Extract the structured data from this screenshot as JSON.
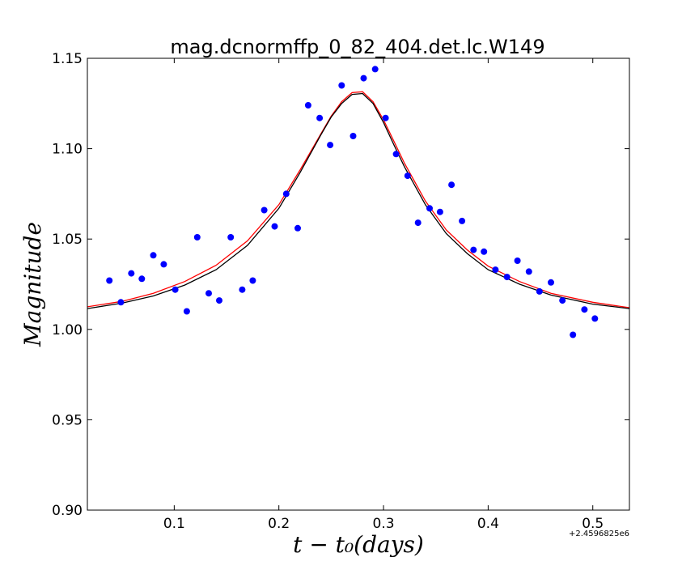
{
  "chart_data": {
    "type": "scatter",
    "title": "mag.dcnormffp_0_82_404.det.lc.W149",
    "xlabel": "t − t₀(days)",
    "ylabel": "Magnitude",
    "x_offset_label": "+2.4596825e6",
    "xlim": [
      0.017,
      0.535
    ],
    "ylim": [
      0.9,
      1.15
    ],
    "xticks": [
      0.1,
      0.2,
      0.3,
      0.4,
      0.5
    ],
    "xtick_labels": [
      "0.1",
      "0.2",
      "0.3",
      "0.4",
      "0.5"
    ],
    "yticks": [
      0.9,
      0.95,
      1.0,
      1.05,
      1.1,
      1.15
    ],
    "ytick_labels": [
      "0.90",
      "0.95",
      "1.00",
      "1.05",
      "1.10",
      "1.15"
    ],
    "grid": false,
    "colors": {
      "points": "#0000ff",
      "model_red": "#ff0000",
      "model_black": "#000000"
    },
    "series": [
      {
        "kind": "points",
        "color": "#0000ff",
        "x": [
          0.038,
          0.049,
          0.059,
          0.069,
          0.08,
          0.09,
          0.101,
          0.112,
          0.122,
          0.133,
          0.143,
          0.154,
          0.165,
          0.175,
          0.186,
          0.196,
          0.207,
          0.218,
          0.228,
          0.239,
          0.249,
          0.26,
          0.271,
          0.281,
          0.292,
          0.302,
          0.312,
          0.323,
          0.333,
          0.344,
          0.354,
          0.365,
          0.375,
          0.386,
          0.396,
          0.407,
          0.418,
          0.428,
          0.439,
          0.449,
          0.46,
          0.471,
          0.481,
          0.492,
          0.502
        ],
        "y": [
          1.027,
          1.015,
          1.031,
          1.028,
          1.041,
          1.036,
          1.022,
          1.01,
          1.051,
          1.02,
          1.016,
          1.051,
          1.022,
          1.027,
          1.066,
          1.057,
          1.075,
          1.056,
          1.124,
          1.117,
          1.102,
          1.135,
          1.107,
          1.139,
          1.144,
          1.117,
          1.097,
          1.085,
          1.059,
          1.067,
          1.065,
          1.08,
          1.06,
          1.044,
          1.043,
          1.033,
          1.029,
          1.038,
          1.032,
          1.021,
          1.026,
          1.016,
          0.997,
          1.011,
          1.006
        ]
      },
      {
        "kind": "model",
        "color": "#ff0000",
        "x": [
          0.017,
          0.05,
          0.08,
          0.11,
          0.14,
          0.17,
          0.2,
          0.22,
          0.24,
          0.25,
          0.26,
          0.27,
          0.28,
          0.29,
          0.3,
          0.31,
          0.32,
          0.34,
          0.36,
          0.38,
          0.4,
          0.43,
          0.46,
          0.5,
          0.535
        ],
        "y": [
          1.0125,
          1.0155,
          1.02,
          1.0265,
          1.0355,
          1.049,
          1.069,
          1.088,
          1.108,
          1.118,
          1.126,
          1.131,
          1.1315,
          1.126,
          1.116,
          1.104,
          1.092,
          1.071,
          1.055,
          1.044,
          1.035,
          1.0265,
          1.02,
          1.015,
          1.012
        ]
      },
      {
        "kind": "model",
        "color": "#000000",
        "x": [
          0.017,
          0.05,
          0.08,
          0.11,
          0.14,
          0.17,
          0.2,
          0.22,
          0.24,
          0.25,
          0.26,
          0.27,
          0.28,
          0.29,
          0.3,
          0.31,
          0.32,
          0.34,
          0.36,
          0.38,
          0.4,
          0.43,
          0.46,
          0.5,
          0.535
        ],
        "y": [
          1.0115,
          1.0145,
          1.0185,
          1.0245,
          1.033,
          1.0465,
          1.067,
          1.0865,
          1.1075,
          1.1175,
          1.125,
          1.13,
          1.1305,
          1.125,
          1.1145,
          1.102,
          1.09,
          1.069,
          1.053,
          1.042,
          1.033,
          1.025,
          1.019,
          1.014,
          1.0115
        ]
      }
    ]
  }
}
